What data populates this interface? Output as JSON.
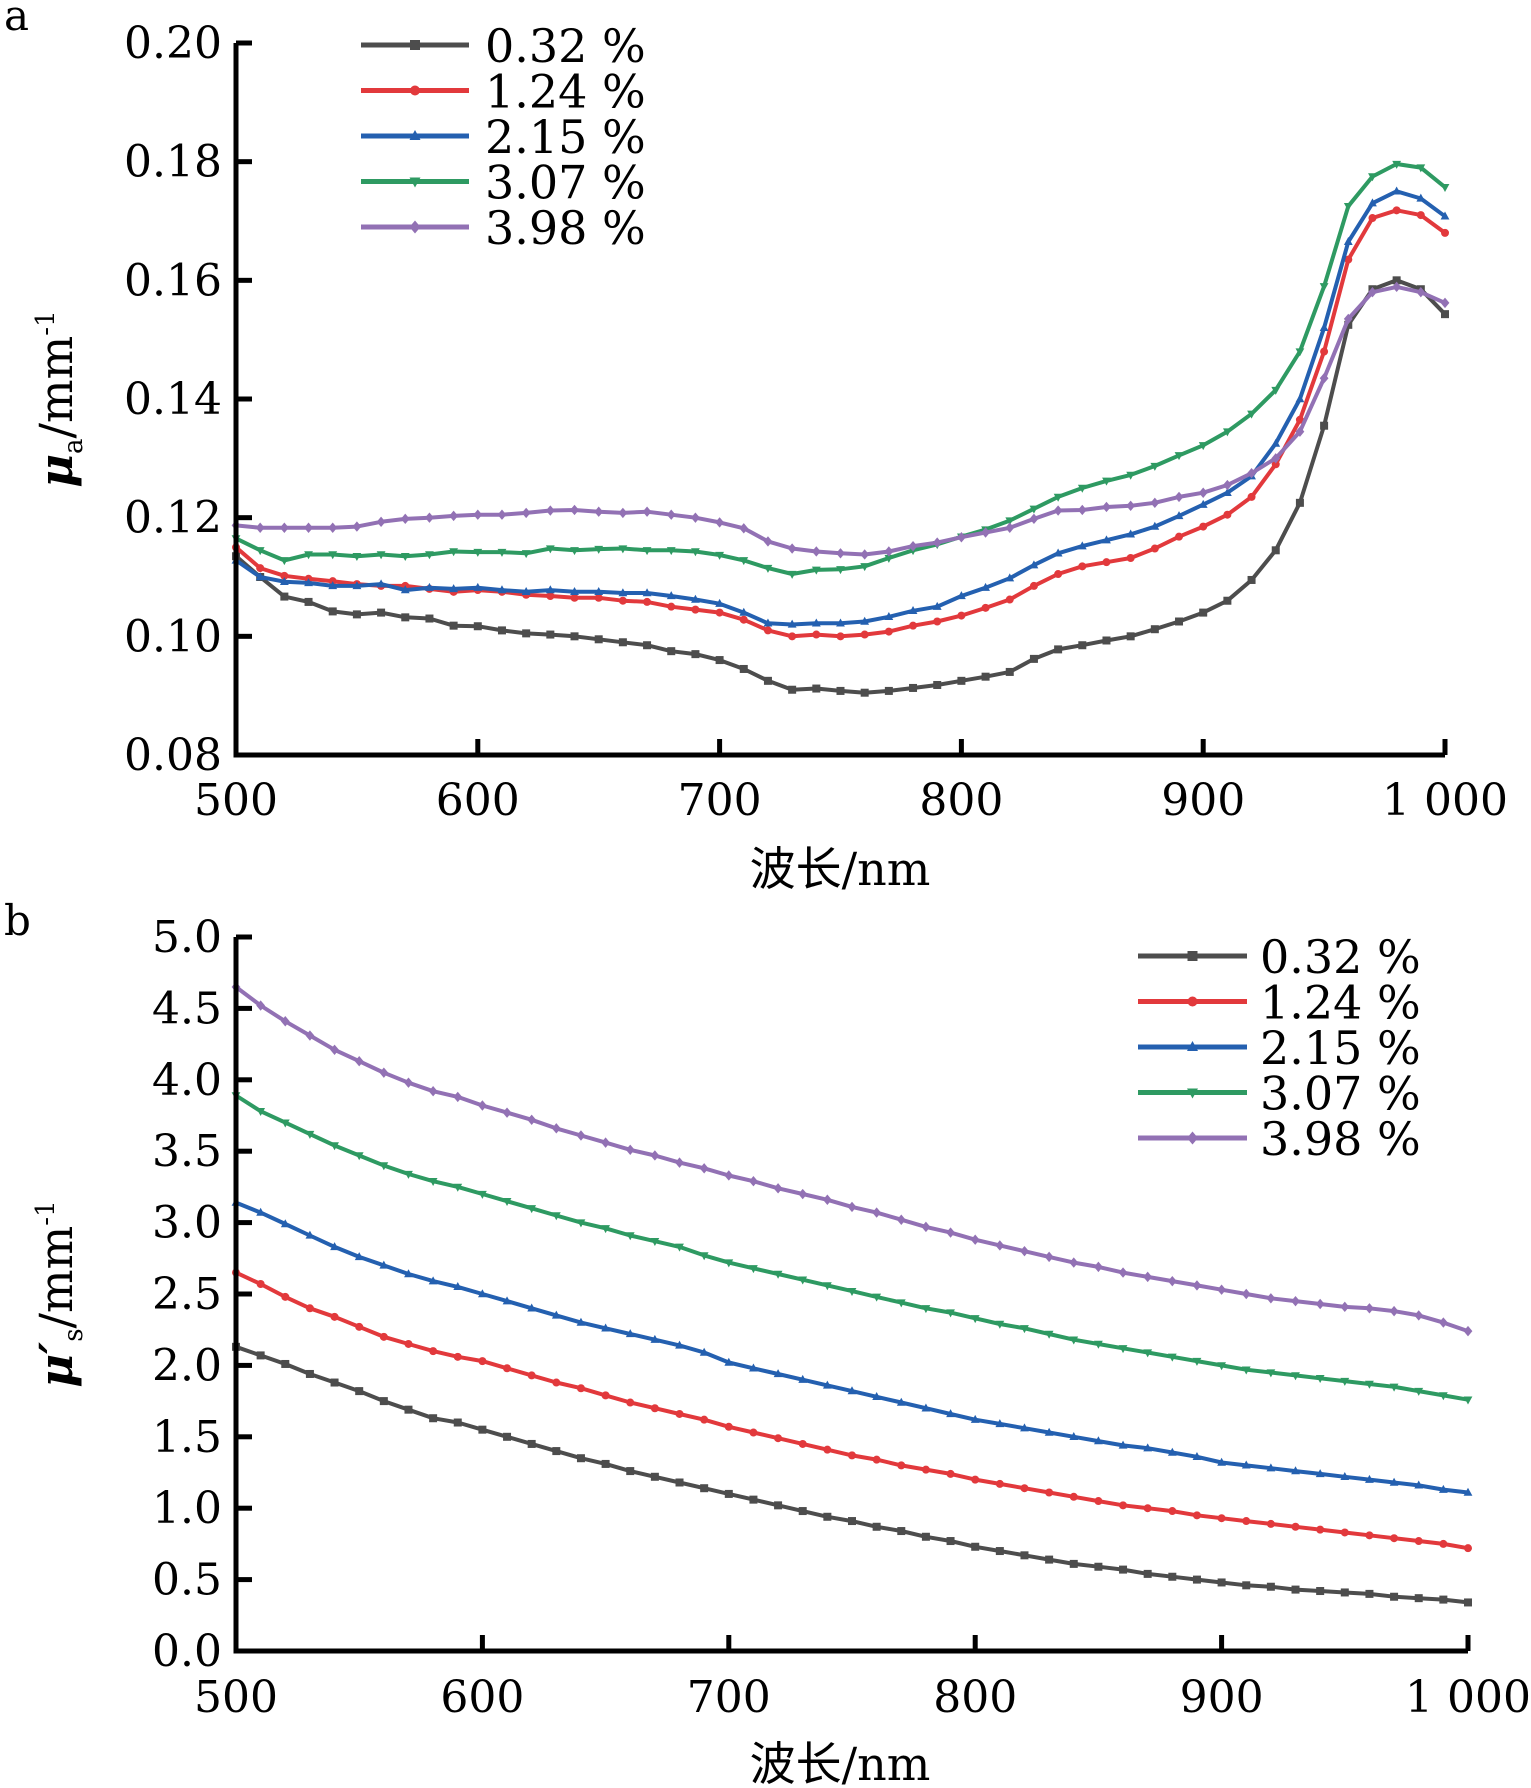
{
  "chart_data": [
    {
      "panel_label": "a",
      "type": "line",
      "title": "",
      "xlabel": "波长/nm",
      "ylabel_main": "μ",
      "ylabel_sub": "a",
      "ylabel_unit": "/mm",
      "ylabel_sup": "-1",
      "xlim": [
        500,
        1000
      ],
      "ylim": [
        0.08,
        0.2
      ],
      "xticks": [
        500,
        600,
        700,
        800,
        900,
        1000
      ],
      "xtick_labels": [
        "500",
        "600",
        "700",
        "800",
        "900",
        "1 000"
      ],
      "yticks": [
        0.08,
        0.1,
        0.12,
        0.14,
        0.16,
        0.18,
        0.2
      ],
      "ytick_labels": [
        "0.08",
        "0.10",
        "0.12",
        "0.14",
        "0.16",
        "0.18",
        "0.20"
      ],
      "grid": false,
      "legend_position": "top-left",
      "x": [
        500,
        510,
        520,
        530,
        540,
        550,
        560,
        570,
        580,
        590,
        600,
        610,
        620,
        630,
        640,
        650,
        660,
        670,
        680,
        690,
        700,
        710,
        720,
        730,
        740,
        750,
        760,
        770,
        780,
        790,
        800,
        810,
        820,
        830,
        840,
        850,
        860,
        870,
        880,
        890,
        900,
        910,
        920,
        930,
        940,
        950,
        960,
        970,
        980,
        990,
        1000
      ],
      "series": [
        {
          "name": "0.32 %",
          "color": "#4d4d4d",
          "marker": "square",
          "values": [
            0.1135,
            0.11,
            0.1067,
            0.1058,
            0.1042,
            0.1037,
            0.104,
            0.1032,
            0.103,
            0.1018,
            0.1017,
            0.101,
            0.1005,
            0.1003,
            0.1,
            0.0995,
            0.099,
            0.0985,
            0.0975,
            0.097,
            0.096,
            0.0945,
            0.0925,
            0.091,
            0.0912,
            0.0908,
            0.0905,
            0.0908,
            0.0913,
            0.0918,
            0.0925,
            0.0932,
            0.094,
            0.0962,
            0.0978,
            0.0985,
            0.0993,
            0.1,
            0.1012,
            0.1025,
            0.104,
            0.106,
            0.1095,
            0.1145,
            0.1225,
            0.1355,
            0.1525,
            0.1585,
            0.16,
            0.1585,
            0.1543
          ]
        },
        {
          "name": "1.24 %",
          "color": "#e2393c",
          "marker": "circle",
          "values": [
            0.115,
            0.1115,
            0.1102,
            0.1097,
            0.1093,
            0.1088,
            0.1085,
            0.1085,
            0.108,
            0.1075,
            0.1078,
            0.1075,
            0.107,
            0.1068,
            0.1065,
            0.1065,
            0.106,
            0.1058,
            0.105,
            0.1045,
            0.104,
            0.1028,
            0.101,
            0.1,
            0.1003,
            0.1,
            0.1003,
            0.1008,
            0.1018,
            0.1025,
            0.1035,
            0.1048,
            0.1062,
            0.1085,
            0.1105,
            0.1118,
            0.1125,
            0.1132,
            0.1148,
            0.1168,
            0.1185,
            0.1205,
            0.1235,
            0.129,
            0.1365,
            0.148,
            0.1635,
            0.1705,
            0.1718,
            0.171,
            0.168
          ]
        },
        {
          "name": "2.15 %",
          "color": "#2460b0",
          "marker": "triangle-up",
          "values": [
            0.1128,
            0.11,
            0.1092,
            0.109,
            0.1085,
            0.1085,
            0.1088,
            0.1078,
            0.1082,
            0.108,
            0.1082,
            0.1078,
            0.1075,
            0.1078,
            0.1075,
            0.1075,
            0.1073,
            0.1073,
            0.1068,
            0.1062,
            0.1055,
            0.104,
            0.1022,
            0.102,
            0.1022,
            0.1022,
            0.1025,
            0.1033,
            0.1043,
            0.105,
            0.1068,
            0.1082,
            0.1098,
            0.112,
            0.114,
            0.1152,
            0.1162,
            0.1172,
            0.1185,
            0.1203,
            0.1222,
            0.1242,
            0.127,
            0.1325,
            0.14,
            0.152,
            0.1665,
            0.173,
            0.175,
            0.1738,
            0.1708
          ]
        },
        {
          "name": "3.07 %",
          "color": "#2e9a62",
          "marker": "triangle-down",
          "values": [
            0.1165,
            0.1145,
            0.1128,
            0.1138,
            0.1138,
            0.1135,
            0.1138,
            0.1135,
            0.1138,
            0.1143,
            0.1142,
            0.1142,
            0.114,
            0.1148,
            0.1145,
            0.1147,
            0.1148,
            0.1145,
            0.1145,
            0.1143,
            0.1137,
            0.1128,
            0.1115,
            0.1105,
            0.1112,
            0.1113,
            0.1118,
            0.1132,
            0.1145,
            0.1155,
            0.1168,
            0.118,
            0.1195,
            0.1215,
            0.1235,
            0.125,
            0.1262,
            0.1272,
            0.1287,
            0.1305,
            0.1322,
            0.1345,
            0.1375,
            0.1415,
            0.148,
            0.159,
            0.1725,
            0.1775,
            0.1796,
            0.179,
            0.1757
          ]
        },
        {
          "name": "3.98 %",
          "color": "#9271b4",
          "marker": "diamond",
          "values": [
            0.1187,
            0.1183,
            0.1183,
            0.1183,
            0.1183,
            0.1185,
            0.1193,
            0.1198,
            0.12,
            0.1203,
            0.1205,
            0.1205,
            0.1208,
            0.1212,
            0.1213,
            0.121,
            0.1208,
            0.121,
            0.1205,
            0.12,
            0.1192,
            0.1182,
            0.116,
            0.1148,
            0.1143,
            0.114,
            0.1138,
            0.1143,
            0.1152,
            0.1158,
            0.1167,
            0.1175,
            0.1183,
            0.1198,
            0.1212,
            0.1213,
            0.1218,
            0.122,
            0.1225,
            0.1235,
            0.1242,
            0.1255,
            0.1275,
            0.13,
            0.1345,
            0.1435,
            0.1535,
            0.158,
            0.1589,
            0.158,
            0.1562
          ]
        }
      ]
    },
    {
      "panel_label": "b",
      "type": "line",
      "title": "",
      "xlabel": "波长/nm",
      "ylabel_main": "μ′",
      "ylabel_sub": "s",
      "ylabel_unit": "/mm",
      "ylabel_sup": "-1",
      "xlim": [
        500,
        1000
      ],
      "ylim": [
        0.0,
        5.0
      ],
      "xticks": [
        500,
        600,
        700,
        800,
        900,
        1000
      ],
      "xtick_labels": [
        "500",
        "600",
        "700",
        "800",
        "900",
        "1 000"
      ],
      "yticks": [
        0.0,
        0.5,
        1.0,
        1.5,
        2.0,
        2.5,
        3.0,
        3.5,
        4.0,
        4.5,
        5.0
      ],
      "ytick_labels": [
        "0.0",
        "0.5",
        "1.0",
        "1.5",
        "2.0",
        "2.5",
        "3.0",
        "3.5",
        "4.0",
        "4.5",
        "5.0"
      ],
      "grid": false,
      "legend_position": "top-right",
      "x": [
        500,
        510,
        520,
        530,
        540,
        550,
        560,
        570,
        580,
        590,
        600,
        610,
        620,
        630,
        640,
        650,
        660,
        670,
        680,
        690,
        700,
        710,
        720,
        730,
        740,
        750,
        760,
        770,
        780,
        790,
        800,
        810,
        820,
        830,
        840,
        850,
        860,
        870,
        880,
        890,
        900,
        910,
        920,
        930,
        940,
        950,
        960,
        970,
        980,
        990,
        1000
      ],
      "series": [
        {
          "name": "0.32 %",
          "color": "#4d4d4d",
          "marker": "square",
          "values": [
            2.13,
            2.07,
            2.01,
            1.94,
            1.88,
            1.82,
            1.75,
            1.69,
            1.63,
            1.6,
            1.55,
            1.5,
            1.45,
            1.4,
            1.35,
            1.31,
            1.26,
            1.22,
            1.18,
            1.14,
            1.1,
            1.06,
            1.02,
            0.98,
            0.94,
            0.91,
            0.87,
            0.84,
            0.8,
            0.77,
            0.73,
            0.7,
            0.67,
            0.64,
            0.61,
            0.59,
            0.57,
            0.54,
            0.52,
            0.5,
            0.48,
            0.46,
            0.45,
            0.43,
            0.42,
            0.41,
            0.4,
            0.38,
            0.37,
            0.36,
            0.34
          ]
        },
        {
          "name": "1.24 %",
          "color": "#e2393c",
          "marker": "circle",
          "values": [
            2.65,
            2.57,
            2.48,
            2.4,
            2.34,
            2.27,
            2.2,
            2.15,
            2.1,
            2.06,
            2.03,
            1.98,
            1.93,
            1.88,
            1.84,
            1.79,
            1.74,
            1.7,
            1.66,
            1.62,
            1.57,
            1.53,
            1.49,
            1.45,
            1.41,
            1.37,
            1.34,
            1.3,
            1.27,
            1.24,
            1.2,
            1.17,
            1.14,
            1.11,
            1.08,
            1.05,
            1.02,
            1.0,
            0.98,
            0.95,
            0.93,
            0.91,
            0.89,
            0.87,
            0.85,
            0.83,
            0.81,
            0.79,
            0.77,
            0.75,
            0.72
          ]
        },
        {
          "name": "2.15 %",
          "color": "#2460b0",
          "marker": "triangle-up",
          "values": [
            3.14,
            3.07,
            2.99,
            2.91,
            2.83,
            2.76,
            2.7,
            2.64,
            2.59,
            2.55,
            2.5,
            2.45,
            2.4,
            2.35,
            2.3,
            2.26,
            2.22,
            2.18,
            2.14,
            2.09,
            2.02,
            1.98,
            1.94,
            1.9,
            1.86,
            1.82,
            1.78,
            1.74,
            1.7,
            1.66,
            1.62,
            1.59,
            1.56,
            1.53,
            1.5,
            1.47,
            1.44,
            1.42,
            1.39,
            1.36,
            1.32,
            1.3,
            1.28,
            1.26,
            1.24,
            1.22,
            1.2,
            1.18,
            1.16,
            1.13,
            1.11
          ]
        },
        {
          "name": "3.07 %",
          "color": "#2e9a62",
          "marker": "triangle-down",
          "values": [
            3.89,
            3.78,
            3.7,
            3.62,
            3.54,
            3.47,
            3.4,
            3.34,
            3.29,
            3.25,
            3.2,
            3.15,
            3.1,
            3.05,
            3.0,
            2.96,
            2.91,
            2.87,
            2.83,
            2.77,
            2.72,
            2.68,
            2.64,
            2.6,
            2.56,
            2.52,
            2.48,
            2.44,
            2.4,
            2.37,
            2.33,
            2.29,
            2.26,
            2.22,
            2.18,
            2.15,
            2.12,
            2.09,
            2.06,
            2.03,
            2.0,
            1.97,
            1.95,
            1.93,
            1.91,
            1.89,
            1.87,
            1.85,
            1.82,
            1.79,
            1.76
          ]
        },
        {
          "name": "3.98 %",
          "color": "#9271b4",
          "marker": "diamond",
          "values": [
            4.65,
            4.52,
            4.41,
            4.31,
            4.21,
            4.13,
            4.05,
            3.98,
            3.92,
            3.88,
            3.82,
            3.77,
            3.72,
            3.66,
            3.61,
            3.56,
            3.51,
            3.47,
            3.42,
            3.38,
            3.33,
            3.29,
            3.24,
            3.2,
            3.16,
            3.11,
            3.07,
            3.02,
            2.97,
            2.93,
            2.88,
            2.84,
            2.8,
            2.76,
            2.72,
            2.69,
            2.65,
            2.62,
            2.59,
            2.56,
            2.53,
            2.5,
            2.47,
            2.45,
            2.43,
            2.41,
            2.4,
            2.38,
            2.35,
            2.3,
            2.24
          ]
        }
      ]
    }
  ]
}
